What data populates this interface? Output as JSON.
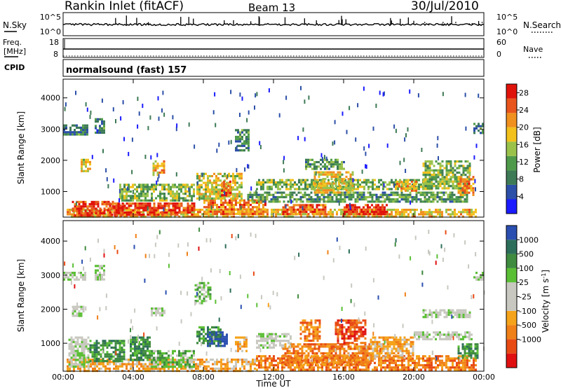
{
  "header": {
    "station": "Rankin Inlet (fitACF)",
    "beam": "Beam 13",
    "date": "30/Jul/2010"
  },
  "nsky_panel": {
    "left_label": "N.Sky",
    "right_label": "N.Search",
    "left_ticks": [
      "10^5",
      "10^0"
    ],
    "right_ticks": [
      "10^5",
      "10^0"
    ]
  },
  "freq_panel": {
    "left_label_1": "Freq.",
    "left_label_2": "[MHz]",
    "right_label": "Nave",
    "left_ticks": [
      "18",
      "8"
    ],
    "right_ticks": [
      "60",
      "0"
    ]
  },
  "cpid_panel": {
    "label": "CPID",
    "program": "normalsound (fast)",
    "number": "157"
  },
  "colors": {
    "power": [
      "#1b1bff",
      "#2c4fa8",
      "#3d7a55",
      "#4f9a4a",
      "#9ac24b",
      "#f2c11c",
      "#f0901f",
      "#e8551c",
      "#e0130b"
    ],
    "velocity": [
      "#2a4fb0",
      "#2d6e5a",
      "#3f8b3f",
      "#5bbf35",
      "#c8c8c0",
      "#c8c8c0",
      "#f5a31a",
      "#f08018",
      "#e84a14",
      "#e01010"
    ]
  },
  "chart_data": [
    {
      "type": "heatmap",
      "title": "",
      "xlabel": "",
      "ylabel": "Slant Range [km]",
      "x_ticks": [
        "00:00",
        "04:00",
        "08:00",
        "12:00",
        "16:00",
        "20:00",
        "00:00"
      ],
      "y_ticks": [
        "1000",
        "2000",
        "3000",
        "4000"
      ],
      "xlim_hours": [
        0,
        24
      ],
      "ylim_km": [
        180,
        4600
      ],
      "colorbar": {
        "label": "Power [dB]",
        "ticks": [
          "4",
          "8",
          "12",
          "16",
          "20",
          "24",
          "28"
        ],
        "range": [
          0,
          30
        ]
      },
      "regions": [
        {
          "t0": 0.2,
          "t1": 23.6,
          "r0": 200,
          "r1": 450,
          "v": 17
        },
        {
          "t0": 0.5,
          "t1": 3.5,
          "r0": 250,
          "r1": 700,
          "v": 24
        },
        {
          "t0": 2.5,
          "t1": 7.5,
          "r0": 250,
          "r1": 650,
          "v": 25
        },
        {
          "t0": 8.0,
          "t1": 11.5,
          "r0": 300,
          "r1": 750,
          "v": 21
        },
        {
          "t0": 12.5,
          "t1": 15.0,
          "r0": 300,
          "r1": 600,
          "v": 22
        },
        {
          "t0": 16.0,
          "t1": 18.5,
          "r0": 300,
          "r1": 600,
          "v": 26
        },
        {
          "t0": 0.0,
          "t1": 1.4,
          "r0": 2850,
          "r1": 3150,
          "v": 7
        },
        {
          "t0": 1.8,
          "t1": 2.4,
          "r0": 2900,
          "r1": 3350,
          "v": 7
        },
        {
          "t0": 1.0,
          "t1": 1.5,
          "r0": 1650,
          "r1": 2050,
          "v": 16
        },
        {
          "t0": 5.1,
          "t1": 5.8,
          "r0": 1550,
          "r1": 2000,
          "v": 19
        },
        {
          "t0": 7.6,
          "t1": 10.2,
          "r0": 800,
          "r1": 1600,
          "v": 15
        },
        {
          "t0": 9.0,
          "t1": 9.5,
          "r0": 900,
          "r1": 1350,
          "v": 22
        },
        {
          "t0": 3.2,
          "t1": 7.5,
          "r0": 700,
          "r1": 1250,
          "v": 12
        },
        {
          "t0": 10.5,
          "t1": 23.0,
          "r0": 650,
          "r1": 1000,
          "v": 9
        },
        {
          "t0": 11.0,
          "t1": 21.0,
          "r0": 1050,
          "r1": 1400,
          "v": 12
        },
        {
          "t0": 14.3,
          "t1": 16.5,
          "r0": 1000,
          "r1": 1650,
          "v": 16
        },
        {
          "t0": 19.0,
          "t1": 20.2,
          "r0": 1000,
          "r1": 1350,
          "v": 19
        },
        {
          "t0": 20.5,
          "t1": 23.2,
          "r0": 1100,
          "r1": 2000,
          "v": 12
        },
        {
          "t0": 22.5,
          "t1": 23.4,
          "r0": 900,
          "r1": 1500,
          "v": 20
        },
        {
          "t0": 23.4,
          "t1": 23.95,
          "r0": 2850,
          "r1": 3200,
          "v": 7
        },
        {
          "t0": 9.8,
          "t1": 10.6,
          "r0": 2300,
          "r1": 3000,
          "v": 8
        },
        {
          "t0": 13.8,
          "t1": 16.0,
          "r0": 1700,
          "r1": 2050,
          "v": 9
        }
      ]
    },
    {
      "type": "heatmap",
      "title": "",
      "xlabel": "Time UT",
      "ylabel": "Slant Range [km]",
      "x_ticks": [
        "00:00",
        "04:00",
        "08:00",
        "12:00",
        "16:00",
        "20:00",
        "00:00"
      ],
      "y_ticks": [
        "1000",
        "2000",
        "3000",
        "4000"
      ],
      "xlim_hours": [
        0,
        24
      ],
      "ylim_km": [
        180,
        4600
      ],
      "colorbar": {
        "label": "Velocity [m s^-1]",
        "ticks": [
          "1000",
          "500",
          "100",
          "25",
          "-25",
          "-100",
          "-500",
          "-1000"
        ]
      },
      "regions": [
        {
          "t0": 0.2,
          "t1": 11.0,
          "r0": 200,
          "r1": 550,
          "v": 6
        },
        {
          "t0": 11.0,
          "t1": 23.6,
          "r0": 200,
          "r1": 650,
          "v": 7
        },
        {
          "t0": 0.3,
          "t1": 1.5,
          "r0": 300,
          "r1": 1200,
          "v": 4
        },
        {
          "t0": 1.5,
          "t1": 3.5,
          "r0": 500,
          "r1": 1100,
          "v": 2
        },
        {
          "t0": 3.8,
          "t1": 5.0,
          "r0": 500,
          "r1": 1200,
          "v": 2
        },
        {
          "t0": 5.0,
          "t1": 7.5,
          "r0": 300,
          "r1": 800,
          "v": 3
        },
        {
          "t0": 7.6,
          "t1": 9.0,
          "r0": 1000,
          "r1": 1500,
          "v": 2
        },
        {
          "t0": 8.2,
          "t1": 9.3,
          "r0": 900,
          "r1": 1350,
          "v": 0
        },
        {
          "t0": 9.8,
          "t1": 10.5,
          "r0": 800,
          "r1": 1200,
          "v": 6
        },
        {
          "t0": 11.0,
          "t1": 13.0,
          "r0": 900,
          "r1": 1300,
          "v": 4
        },
        {
          "t0": 12.5,
          "t1": 17.5,
          "r0": 400,
          "r1": 1000,
          "v": 7
        },
        {
          "t0": 13.5,
          "t1": 14.6,
          "r0": 1050,
          "r1": 1700,
          "v": 7
        },
        {
          "t0": 15.5,
          "t1": 17.2,
          "r0": 1000,
          "r1": 1700,
          "v": 8
        },
        {
          "t0": 17.5,
          "t1": 20.0,
          "r0": 600,
          "r1": 1200,
          "v": 6
        },
        {
          "t0": 20.0,
          "t1": 23.3,
          "r0": 1100,
          "r1": 1350,
          "v": 4
        },
        {
          "t0": 20.5,
          "t1": 23.2,
          "r0": 1800,
          "r1": 2000,
          "v": 4
        },
        {
          "t0": 22.5,
          "t1": 23.6,
          "r0": 600,
          "r1": 1000,
          "v": 2
        },
        {
          "t0": 0.0,
          "t1": 1.3,
          "r0": 2850,
          "r1": 3100,
          "v": 4
        },
        {
          "t0": 1.8,
          "t1": 2.3,
          "r0": 2900,
          "r1": 3300,
          "v": 4
        },
        {
          "t0": 0.5,
          "t1": 1.2,
          "r0": 1800,
          "r1": 2100,
          "v": 4
        },
        {
          "t0": 5.0,
          "t1": 5.8,
          "r0": 1800,
          "r1": 2050,
          "v": 4
        },
        {
          "t0": 23.4,
          "t1": 23.95,
          "r0": 2900,
          "r1": 3100,
          "v": 4
        },
        {
          "t0": 7.5,
          "t1": 8.4,
          "r0": 2200,
          "r1": 2800,
          "v": 3
        }
      ]
    }
  ]
}
